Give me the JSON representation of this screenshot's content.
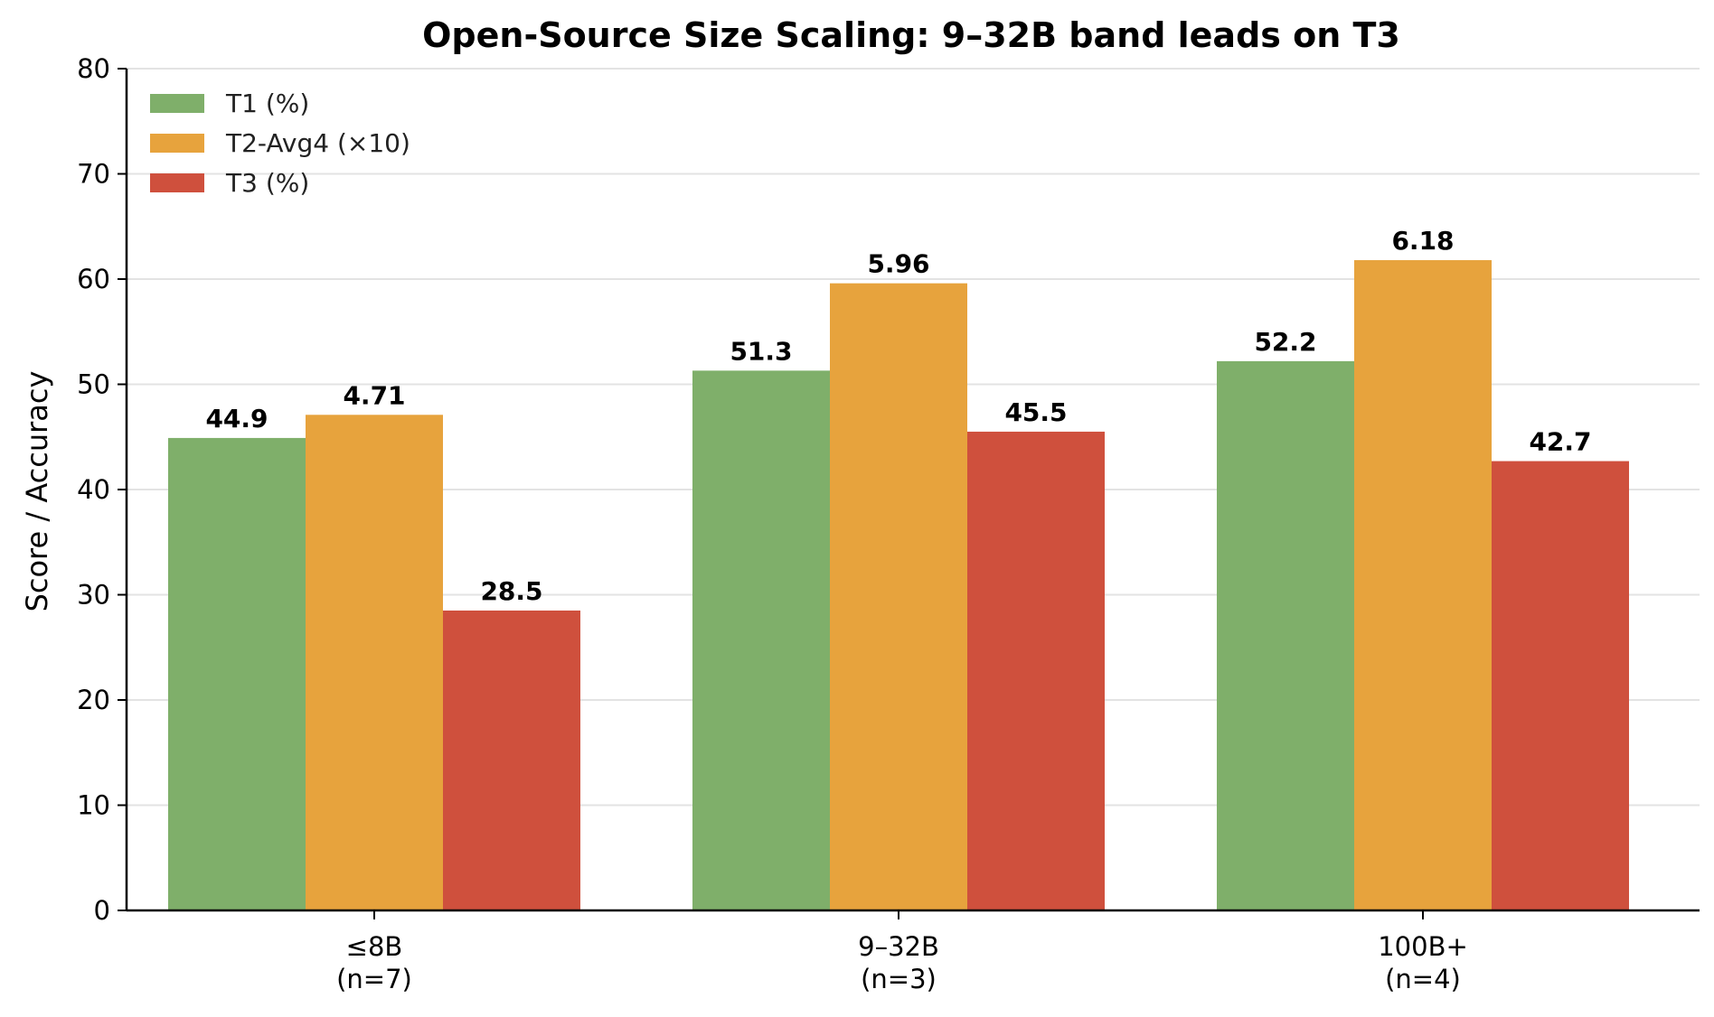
{
  "chart_data": {
    "type": "bar",
    "title": "Open-Source Size Scaling: 9–32B band leads on T3",
    "xlabel": "",
    "ylabel": "Score / Accuracy",
    "ylim": [
      0,
      80
    ],
    "yticks": [
      0,
      10,
      20,
      30,
      40,
      50,
      60,
      70,
      80
    ],
    "grid": "horizontal",
    "legend_position": "top-left",
    "categories": [
      [
        "≤8B",
        "(n=7)"
      ],
      [
        "9–32B",
        "(n=3)"
      ],
      [
        "100B+",
        "(n=4)"
      ]
    ],
    "series": [
      {
        "name": "T1 (%)",
        "color": "#7faf6a",
        "values": [
          44.9,
          51.3,
          52.2
        ],
        "labels": [
          "44.9",
          "51.3",
          "52.2"
        ]
      },
      {
        "name": "T2-Avg4 (×10)",
        "color": "#e7a33d",
        "values": [
          47.1,
          59.6,
          61.8
        ],
        "labels": [
          "4.71",
          "5.96",
          "6.18"
        ]
      },
      {
        "name": "T3 (%)",
        "color": "#cf503d",
        "values": [
          28.5,
          45.5,
          42.7
        ],
        "labels": [
          "28.5",
          "45.5",
          "42.7"
        ]
      }
    ]
  }
}
